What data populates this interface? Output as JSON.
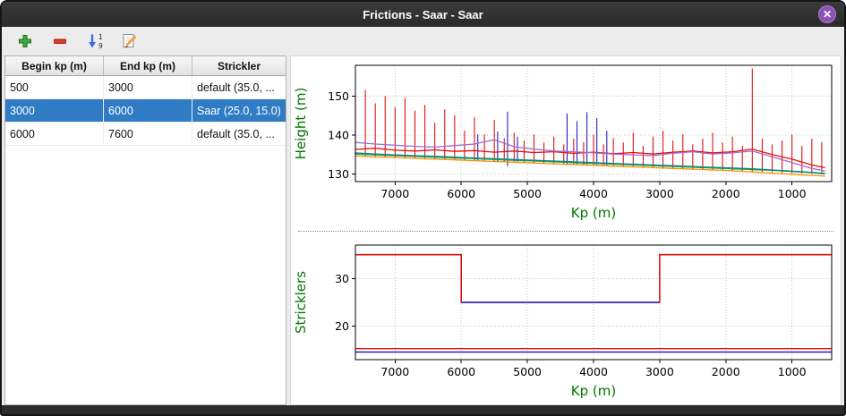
{
  "window": {
    "title": "Frictions - Saar - Saar",
    "close_glyph": "✕"
  },
  "colors": {
    "selection": "#2f7cc4",
    "close_button": "#8c52b5",
    "axis_label": "#007700",
    "grid": "#c8c8c8"
  },
  "toolbar": {
    "buttons": [
      {
        "name": "add",
        "icon": "plus-icon"
      },
      {
        "name": "remove",
        "icon": "minus-icon"
      },
      {
        "name": "sort",
        "icon": "sort-ascending-icon"
      },
      {
        "name": "edit",
        "icon": "edit-icon"
      }
    ]
  },
  "table": {
    "columns": [
      "Begin kp (m)",
      "End kp (m)",
      "Strickler"
    ],
    "rows": [
      {
        "begin": "500",
        "end": "3000",
        "strickler": "default (35.0, ...",
        "selected": false
      },
      {
        "begin": "3000",
        "end": "6000",
        "strickler": "Saar (25.0, 15.0)",
        "selected": true
      },
      {
        "begin": "6000",
        "end": "7600",
        "strickler": "default (35.0, ...",
        "selected": false
      }
    ]
  },
  "chart_data": [
    {
      "type": "line",
      "title": "",
      "xlabel": "Kp (m)",
      "ylabel": "Height (m)",
      "axis_label_color": "#007700",
      "xlim": [
        7600,
        400
      ],
      "ylim": [
        128,
        158
      ],
      "xticks": [
        7000,
        6000,
        5000,
        4000,
        3000,
        2000,
        1000
      ],
      "yticks": [
        130,
        140,
        150
      ],
      "grid": true,
      "legend": "none",
      "spikes": [
        {
          "name": "cross-sections-red",
          "color": "#e01010",
          "points": [
            [
              7600,
              134.6,
              150.4
            ],
            [
              7450,
              134.5,
              151.6
            ],
            [
              7300,
              134.4,
              148.2
            ],
            [
              7150,
              134.3,
              150.1
            ],
            [
              7000,
              134.2,
              147.2
            ],
            [
              6850,
              134.1,
              149.6
            ],
            [
              6700,
              134.0,
              146.3
            ],
            [
              6550,
              133.9,
              147.8
            ],
            [
              6400,
              133.8,
              143.2
            ],
            [
              6250,
              133.7,
              146.6
            ],
            [
              6100,
              133.6,
              145.1
            ],
            [
              5950,
              133.5,
              141.2
            ],
            [
              5800,
              133.4,
              144.6
            ],
            [
              5650,
              133.3,
              140.2
            ],
            [
              5500,
              133.2,
              143.9
            ],
            [
              5350,
              133.1,
              139.2
            ],
            [
              5200,
              133.0,
              140.6
            ],
            [
              5050,
              132.9,
              138.6
            ],
            [
              4900,
              132.8,
              140.1
            ],
            [
              4750,
              132.7,
              138.1
            ],
            [
              4600,
              132.6,
              139.6
            ],
            [
              4450,
              132.5,
              137.6
            ],
            [
              4300,
              132.4,
              139.1
            ],
            [
              4150,
              132.3,
              138.2
            ],
            [
              4000,
              132.2,
              140.1
            ],
            [
              3850,
              132.1,
              137.6
            ],
            [
              3700,
              132.0,
              139.2
            ],
            [
              3550,
              131.9,
              138.1
            ],
            [
              3400,
              131.8,
              140.6
            ],
            [
              3250,
              131.7,
              137.2
            ],
            [
              3100,
              131.6,
              139.6
            ],
            [
              2950,
              131.5,
              141.1
            ],
            [
              2800,
              131.4,
              138.6
            ],
            [
              2650,
              131.3,
              140.2
            ],
            [
              2500,
              131.2,
              137.6
            ],
            [
              2350,
              131.1,
              139.1
            ],
            [
              2200,
              131.0,
              140.6
            ],
            [
              2050,
              130.9,
              138.1
            ],
            [
              1900,
              130.8,
              139.6
            ],
            [
              1750,
              130.7,
              137.2
            ],
            [
              1600,
              130.6,
              157.2
            ],
            [
              1450,
              130.5,
              139.1
            ],
            [
              1300,
              130.4,
              137.6
            ],
            [
              1150,
              130.3,
              138.6
            ],
            [
              1000,
              130.2,
              140.1
            ],
            [
              850,
              130.1,
              137.2
            ],
            [
              700,
              130.0,
              139.1
            ],
            [
              550,
              129.9,
              138.2
            ]
          ]
        },
        {
          "name": "cross-sections-blue-selected",
          "color": "#2323bd",
          "points": [
            [
              5750,
              133.3,
              140.2
            ],
            [
              5450,
              133.1,
              140.9
            ],
            [
              5300,
              132.0,
              146.1
            ],
            [
              5150,
              132.9,
              139.6
            ],
            [
              4400,
              132.4,
              145.6
            ],
            [
              4250,
              132.3,
              143.6
            ],
            [
              4100,
              132.2,
              145.9
            ],
            [
              3950,
              132.1,
              144.4
            ],
            [
              3800,
              132.0,
              141.1
            ]
          ]
        }
      ],
      "series": [
        {
          "name": "water-level-red",
          "color": "#e01010",
          "x": [
            7600,
            7300,
            7000,
            6700,
            6400,
            6100,
            5800,
            5500,
            5200,
            4900,
            4600,
            4300,
            4000,
            3700,
            3400,
            3100,
            2800,
            2500,
            2200,
            1900,
            1600,
            1300,
            1000,
            700,
            500
          ],
          "y": [
            136.3,
            136.6,
            136.1,
            135.9,
            136.2,
            135.8,
            136.0,
            135.6,
            135.9,
            135.5,
            135.7,
            135.3,
            135.6,
            135.2,
            135.5,
            135.1,
            135.6,
            135.9,
            135.4,
            135.7,
            136.4,
            135.0,
            133.8,
            132.3,
            131.6
          ]
        },
        {
          "name": "envelope-violet",
          "color": "#a06cd5",
          "x": [
            7600,
            7300,
            7000,
            6700,
            6400,
            6100,
            5800,
            5500,
            5200,
            4900,
            4600,
            4300,
            4000,
            3700,
            3400,
            3100,
            2800,
            2500,
            2200,
            1900,
            1600,
            1300,
            1000,
            700,
            500
          ],
          "y": [
            138.1,
            137.7,
            137.4,
            137.1,
            136.9,
            137.3,
            137.7,
            138.8,
            137.0,
            136.4,
            135.9,
            135.7,
            135.4,
            135.1,
            134.9,
            134.7,
            135.3,
            135.7,
            135.1,
            135.4,
            135.9,
            134.4,
            132.9,
            131.4,
            130.7
          ]
        },
        {
          "name": "bed-profile-green",
          "color": "#2ca02c",
          "x": [
            7600,
            7300,
            7000,
            6700,
            6400,
            6100,
            5800,
            5500,
            5200,
            4900,
            4600,
            4300,
            4000,
            3700,
            3400,
            3100,
            2800,
            2500,
            2200,
            1900,
            1600,
            1300,
            1000,
            700,
            500
          ],
          "y": [
            135.1,
            134.9,
            134.7,
            134.5,
            134.3,
            134.1,
            133.9,
            133.7,
            133.5,
            133.3,
            133.1,
            132.9,
            132.7,
            132.5,
            132.3,
            132.1,
            131.9,
            131.7,
            131.5,
            131.3,
            131.1,
            130.9,
            130.6,
            130.3,
            130.0
          ]
        },
        {
          "name": "bed-profile-teal",
          "color": "#00898f",
          "x": [
            7600,
            7300,
            7000,
            6700,
            6400,
            6100,
            5800,
            5500,
            5200,
            4900,
            4600,
            4300,
            4000,
            3700,
            3400,
            3100,
            2800,
            2500,
            2200,
            1900,
            1600,
            1300,
            1000,
            700,
            500
          ],
          "y": [
            135.4,
            135.1,
            134.9,
            134.7,
            134.5,
            134.3,
            134.1,
            133.9,
            133.7,
            133.5,
            133.3,
            133.1,
            132.9,
            132.7,
            132.5,
            132.3,
            132.1,
            131.9,
            131.7,
            131.5,
            131.3,
            131.0,
            130.7,
            130.4,
            130.1
          ]
        },
        {
          "name": "bed-profile-orange",
          "color": "#ff8c00",
          "x": [
            7600,
            7300,
            7000,
            6700,
            6400,
            6100,
            5800,
            5500,
            5200,
            4900,
            4600,
            4300,
            4000,
            3700,
            3400,
            3100,
            2800,
            2500,
            2200,
            1900,
            1600,
            1300,
            1000,
            700,
            500
          ],
          "y": [
            134.6,
            134.4,
            134.2,
            134.0,
            133.8,
            133.6,
            133.4,
            133.2,
            133.0,
            132.8,
            132.6,
            132.4,
            132.2,
            132.0,
            131.8,
            131.6,
            131.4,
            131.2,
            131.0,
            130.8,
            130.5,
            130.2,
            129.9,
            129.6,
            129.4
          ]
        }
      ]
    },
    {
      "type": "line",
      "title": "",
      "xlabel": "Kp (m)",
      "ylabel": "Stricklers",
      "axis_label_color": "#007700",
      "xlim": [
        7600,
        400
      ],
      "ylim": [
        13,
        37
      ],
      "xticks": [
        7000,
        6000,
        5000,
        4000,
        3000,
        2000,
        1000
      ],
      "yticks": [
        20,
        30
      ],
      "grid": true,
      "legend": "none",
      "series": [
        {
          "name": "minor-bed-strickler-steps",
          "color": "#e01010",
          "width": 1.6,
          "x": [
            7600,
            6000,
            6000,
            3000,
            3000,
            400
          ],
          "y": [
            35,
            35,
            25,
            25,
            35,
            35
          ]
        },
        {
          "name": "selected-segment-strickler",
          "color": "#2323bd",
          "width": 1.6,
          "x": [
            6000,
            3000
          ],
          "y": [
            25,
            25
          ]
        },
        {
          "name": "major-bed-strickler-red",
          "color": "#e01010",
          "width": 1.4,
          "x": [
            7600,
            400
          ],
          "y": [
            15.3,
            15.3
          ]
        },
        {
          "name": "major-bed-strickler-blue",
          "color": "#2323bd",
          "width": 1.4,
          "x": [
            7600,
            400
          ],
          "y": [
            14.6,
            14.6
          ]
        }
      ]
    }
  ]
}
